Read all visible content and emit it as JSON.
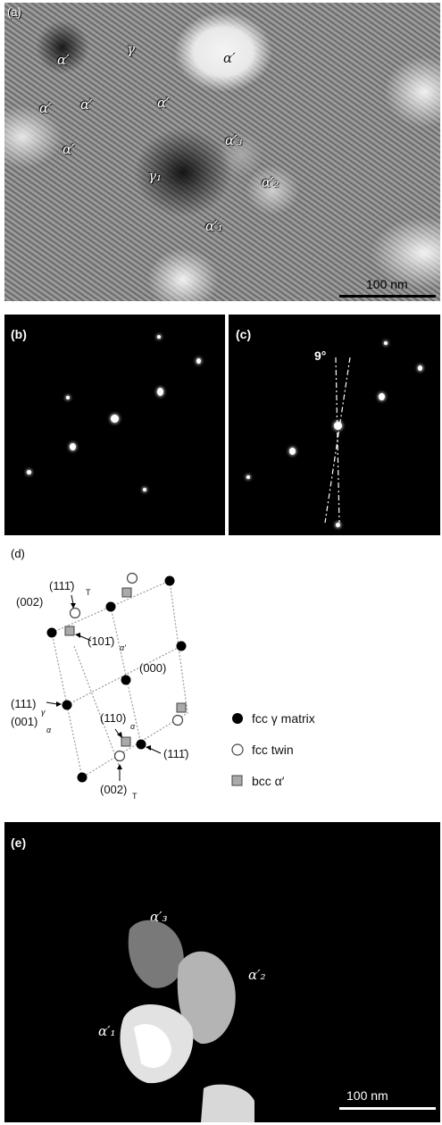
{
  "panels": {
    "a": {
      "label": "(a)",
      "scale": "100 nm",
      "phases": [
        "α′",
        "γ",
        "α′",
        "α′",
        "α′",
        "α′",
        "α′",
        "α′₃",
        "γ₁",
        "α′₂",
        "α′₁"
      ]
    },
    "b": {
      "label": "(b)"
    },
    "c": {
      "label": "(c)",
      "angle": "9°"
    },
    "d": {
      "label": "(d)",
      "planes": [
        "(002)",
        "(111̄)",
        "T",
        "(101̄)",
        "α′",
        "(000)",
        "(111)",
        "γ",
        "(001)",
        "α",
        "(110)",
        "α",
        "(111̄)",
        "(002)",
        "T"
      ]
    },
    "e": {
      "label": "(e)",
      "scale": "100 nm",
      "phases": [
        "α′₃",
        "α′₂",
        "α′₁"
      ]
    }
  },
  "legend": [
    {
      "marker": "filled-circle",
      "text": "fcc γ matrix"
    },
    {
      "marker": "open-circle",
      "text": "fcc twin"
    },
    {
      "marker": "gray-square",
      "text": "bcc α′"
    }
  ]
}
